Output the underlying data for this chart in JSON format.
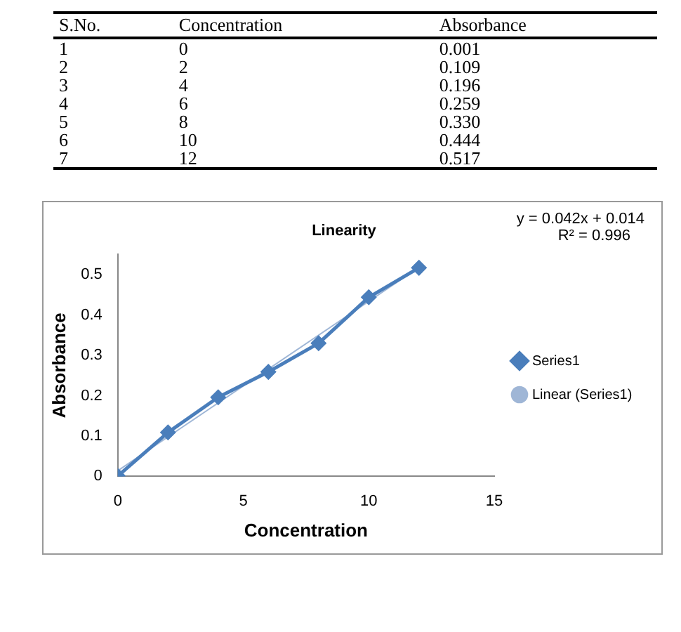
{
  "chart_data": {
    "type": "line",
    "title": "Linearity",
    "xlabel": "Concentration",
    "ylabel": "Absorbance",
    "x": [
      0,
      2,
      4,
      6,
      8,
      10,
      12
    ],
    "series": [
      {
        "name": "Series1",
        "color": "#4a7ebb",
        "values": [
          0.001,
          0.109,
          0.196,
          0.259,
          0.33,
          0.444,
          0.517
        ],
        "marker": "diamond"
      },
      {
        "name": "Linear (Series1)",
        "type": "line",
        "color": "#9fb6d6",
        "x": [
          0,
          12
        ],
        "values": [
          0.014,
          0.518
        ],
        "marker": "none"
      }
    ],
    "annotations": [
      "y = 0.042x + 0.014",
      "R² = 0.996",
      "S.No.",
      "Concentration",
      "Absorbance",
      "1",
      "0",
      "0.001",
      "2",
      "2",
      "0.109",
      "3",
      "4",
      "0.196",
      "4",
      "6",
      "0.259",
      "5",
      "8",
      "0.330",
      "6",
      "10",
      "0.444",
      "7",
      "12",
      "0.517"
    ],
    "xlim": [
      0,
      15
    ],
    "xticks": [
      0,
      5,
      10,
      15
    ],
    "ylim": [
      0,
      0.55
    ],
    "yticks": [
      0,
      0.1,
      0.2,
      0.3,
      0.4,
      0.5
    ],
    "grid": false,
    "legend": "right"
  }
}
